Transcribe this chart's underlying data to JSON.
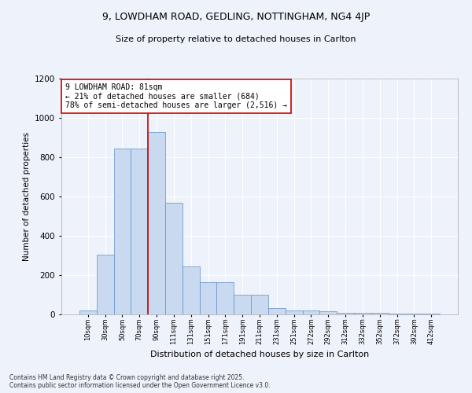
{
  "title_line1": "9, LOWDHAM ROAD, GEDLING, NOTTINGHAM, NG4 4JP",
  "title_line2": "Size of property relative to detached houses in Carlton",
  "xlabel": "Distribution of detached houses by size in Carlton",
  "ylabel": "Number of detached properties",
  "categories": [
    "10sqm",
    "30sqm",
    "50sqm",
    "70sqm",
    "90sqm",
    "111sqm",
    "131sqm",
    "151sqm",
    "171sqm",
    "191sqm",
    "211sqm",
    "231sqm",
    "251sqm",
    "272sqm",
    "292sqm",
    "312sqm",
    "332sqm",
    "352sqm",
    "372sqm",
    "392sqm",
    "412sqm"
  ],
  "values": [
    20,
    305,
    845,
    845,
    930,
    570,
    243,
    163,
    163,
    100,
    100,
    32,
    22,
    22,
    15,
    10,
    10,
    7,
    5,
    5,
    5
  ],
  "bar_color": "#c8d9f0",
  "bar_edge_color": "#6090c8",
  "vline_x_index": 3.5,
  "vline_color": "#cc0000",
  "annotation_text": "9 LOWDHAM ROAD: 81sqm\n← 21% of detached houses are smaller (684)\n78% of semi-detached houses are larger (2,516) →",
  "annotation_box_color": "#ffffff",
  "annotation_edge_color": "#cc0000",
  "ylim": [
    0,
    1200
  ],
  "yticks": [
    0,
    200,
    400,
    600,
    800,
    1000,
    1200
  ],
  "background_color": "#eef2fb",
  "grid_color": "#ffffff",
  "footer_line1": "Contains HM Land Registry data © Crown copyright and database right 2025.",
  "footer_line2": "Contains public sector information licensed under the Open Government Licence v3.0."
}
